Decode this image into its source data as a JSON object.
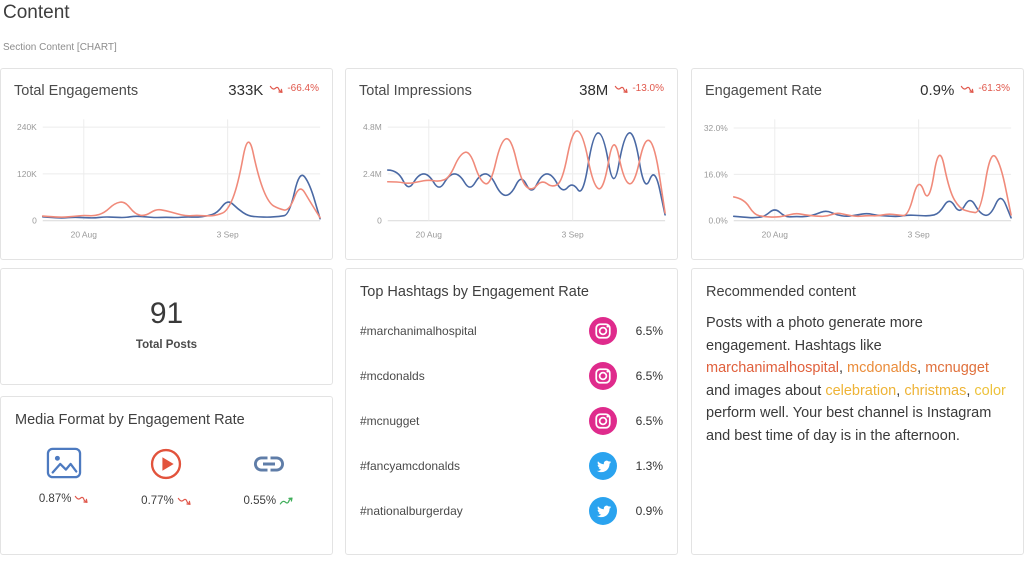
{
  "page": {
    "title": "Content",
    "section_label": "Section Content [CHART]"
  },
  "chart_data": [
    {
      "type": "line",
      "title": "Total Engagements",
      "value": "333K",
      "change": "-66.4%",
      "trend": "down",
      "unit": "thousands",
      "ylim": [
        0,
        260
      ],
      "yticks": [
        {
          "v": 0,
          "label": "0"
        },
        {
          "v": 120,
          "label": "120K"
        },
        {
          "v": 240,
          "label": "240K"
        }
      ],
      "xticks": [
        {
          "i": 4,
          "label": "20 Aug"
        },
        {
          "i": 18,
          "label": "3 Sep"
        }
      ],
      "series": [
        {
          "name": "series-blue",
          "color": "#4a69a4",
          "values": [
            10,
            8,
            7,
            9,
            8,
            7,
            10,
            9,
            8,
            12,
            10,
            8,
            9,
            8,
            10,
            9,
            12,
            20,
            55,
            30,
            12,
            10,
            9,
            11,
            15,
            130,
            95,
            5
          ]
        },
        {
          "name": "series-salmon",
          "color": "#f08a7a",
          "values": [
            12,
            10,
            9,
            11,
            14,
            12,
            20,
            45,
            50,
            16,
            12,
            30,
            26,
            18,
            12,
            14,
            12,
            14,
            25,
            90,
            235,
            110,
            45,
            30,
            25,
            95,
            50,
            8
          ]
        }
      ]
    },
    {
      "type": "line",
      "title": "Total Impressions",
      "value": "38M",
      "change": "-13.0%",
      "trend": "down",
      "unit": "millions",
      "ylim": [
        0,
        5.2
      ],
      "yticks": [
        {
          "v": 0,
          "label": "0"
        },
        {
          "v": 2.4,
          "label": "2.4M"
        },
        {
          "v": 4.8,
          "label": "4.8M"
        }
      ],
      "xticks": [
        {
          "i": 4,
          "label": "20 Aug"
        },
        {
          "i": 18,
          "label": "3 Sep"
        }
      ],
      "series": [
        {
          "name": "series-blue",
          "color": "#4a69a4",
          "values": [
            2.6,
            2.6,
            1.5,
            2.4,
            2.4,
            1.5,
            2.4,
            2.4,
            1.5,
            2.4,
            2.4,
            1.3,
            1.3,
            2.4,
            1.3,
            2.4,
            2.4,
            1.4,
            2.0,
            1.2,
            4.5,
            4.5,
            1.4,
            4.4,
            4.6,
            1.4,
            2.8,
            0.3
          ]
        },
        {
          "name": "series-salmon",
          "color": "#f08a7a",
          "values": [
            2.0,
            2.0,
            1.9,
            2.0,
            2.1,
            2.0,
            2.2,
            3.4,
            3.6,
            2.0,
            1.8,
            4.1,
            4.3,
            2.0,
            1.5,
            2.1,
            1.7,
            2.0,
            4.7,
            4.5,
            1.8,
            1.5,
            4.6,
            2.0,
            1.8,
            4.3,
            3.9,
            0.4
          ]
        }
      ]
    },
    {
      "type": "line",
      "title": "Engagement Rate",
      "value": "0.9%",
      "change": "-61.3%",
      "trend": "down",
      "unit": "percent",
      "ylim": [
        0,
        35
      ],
      "yticks": [
        {
          "v": 0,
          "label": "0.0%"
        },
        {
          "v": 16,
          "label": "16.0%"
        },
        {
          "v": 32,
          "label": "32.0%"
        }
      ],
      "xticks": [
        {
          "i": 4,
          "label": "20 Aug"
        },
        {
          "i": 18,
          "label": "3 Sep"
        }
      ],
      "series": [
        {
          "name": "series-blue",
          "color": "#4a69a4",
          "values": [
            1.5,
            1.2,
            1.0,
            1.4,
            4.5,
            1.2,
            1.5,
            1.3,
            2.2,
            3.6,
            2.0,
            1.4,
            2.0,
            2.6,
            1.8,
            1.6,
            1.4,
            2.0,
            1.8,
            1.6,
            2.4,
            8.2,
            2.0,
            8.6,
            2.2,
            1.6,
            9.8,
            1.0
          ]
        },
        {
          "name": "series-salmon",
          "color": "#f08a7a",
          "values": [
            8.2,
            7.6,
            2.0,
            1.4,
            1.2,
            1.6,
            2.6,
            2.0,
            1.6,
            1.4,
            2.8,
            2.0,
            1.4,
            1.8,
            1.6,
            2.4,
            2.0,
            1.6,
            15.5,
            5.0,
            27.5,
            10.0,
            4.2,
            3.0,
            2.6,
            24.5,
            19.5,
            2.0
          ]
        }
      ]
    }
  ],
  "total_posts": {
    "value": "91",
    "label": "Total Posts"
  },
  "media_format": {
    "title": "Media Format by Engagement Rate",
    "items": [
      {
        "icon": "photo-icon",
        "value": "0.87%",
        "trend": "down"
      },
      {
        "icon": "video-icon",
        "value": "0.77%",
        "trend": "down"
      },
      {
        "icon": "link-icon",
        "value": "0.55%",
        "trend": "up"
      }
    ]
  },
  "hashtags": {
    "title": "Top Hashtags by Engagement Rate",
    "items": [
      {
        "tag": "#marchanimalhospital",
        "network": "instagram",
        "value": "6.5%"
      },
      {
        "tag": "#mcdonalds",
        "network": "instagram",
        "value": "6.5%"
      },
      {
        "tag": "#mcnugget",
        "network": "instagram",
        "value": "6.5%"
      },
      {
        "tag": "#fancyamcdonalds",
        "network": "twitter",
        "value": "1.3%"
      },
      {
        "tag": "#nationalburgerday",
        "network": "twitter",
        "value": "0.9%"
      }
    ]
  },
  "recommended": {
    "title": "Recommended content",
    "segments": [
      {
        "text": "Posts with a photo generate more engagement. Hashtags like "
      },
      {
        "text": "marchanimalhospital",
        "color": "#e0603c"
      },
      {
        "text": ", "
      },
      {
        "text": "mcdonalds",
        "color": "#ea8c3a"
      },
      {
        "text": ", "
      },
      {
        "text": "mcnugget",
        "color": "#e0703c"
      },
      {
        "text": " and images about "
      },
      {
        "text": "celebration",
        "color": "#eeb336"
      },
      {
        "text": ", "
      },
      {
        "text": "christmas",
        "color": "#eeb336"
      },
      {
        "text": ", "
      },
      {
        "text": "color",
        "color": "#edc23c"
      },
      {
        "text": " perform well. Your best channel is Instagram and best time of day is in the afternoon."
      }
    ]
  },
  "colors": {
    "series_blue": "#4a69a4",
    "series_salmon": "#f08a7a",
    "negative": "#e0584c",
    "positive": "#3fae5a",
    "instagram": "#df2b8c",
    "twitter": "#2aa3ef"
  }
}
